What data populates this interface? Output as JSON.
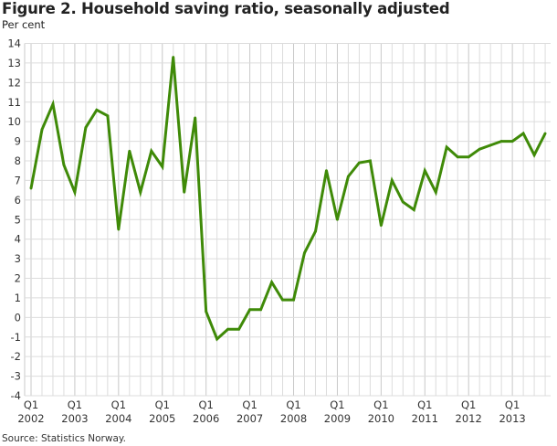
{
  "chart_data": {
    "type": "line",
    "title": "Figure 2. Household saving ratio, seasonally adjusted",
    "subtitle": "Per cent",
    "source": "Source: Statistics Norway.",
    "xlabel": "",
    "ylabel": "Per cent",
    "ylim": [
      -4,
      14
    ],
    "yticks": [
      "14",
      "13",
      "12",
      "11",
      "10",
      "9",
      "8",
      "7",
      "6",
      "5",
      "4",
      "3",
      "2",
      "1",
      "0",
      "-1",
      "-2",
      "-3",
      "-4"
    ],
    "ytick_values": [
      14,
      13,
      12,
      11,
      10,
      9,
      8,
      7,
      6,
      5,
      4,
      3,
      2,
      1,
      0,
      -1,
      -2,
      -3,
      -4
    ],
    "xticks": [
      {
        "q": "Q1",
        "year": "2002",
        "index": 0
      },
      {
        "q": "Q1",
        "year": "2003",
        "index": 4
      },
      {
        "q": "Q1",
        "year": "2004",
        "index": 8
      },
      {
        "q": "Q1",
        "year": "2005",
        "index": 12
      },
      {
        "q": "Q1",
        "year": "2006",
        "index": 16
      },
      {
        "q": "Q1",
        "year": "2007",
        "index": 20
      },
      {
        "q": "Q1",
        "year": "2008",
        "index": 24
      },
      {
        "q": "Q1",
        "year": "2009",
        "index": 28
      },
      {
        "q": "Q1",
        "year": "2010",
        "index": 32
      },
      {
        "q": "Q1",
        "year": "2011",
        "index": 36
      },
      {
        "q": "Q1",
        "year": "2012",
        "index": 40
      },
      {
        "q": "Q1",
        "year": "2013",
        "index": 44
      }
    ],
    "grid": true,
    "series": [
      {
        "name": "Household saving ratio",
        "color": "#3f8a08",
        "start": "2002Q1",
        "values": [
          6.6,
          9.6,
          10.9,
          7.8,
          6.4,
          9.7,
          10.6,
          10.3,
          4.5,
          8.5,
          6.4,
          8.5,
          7.7,
          13.3,
          6.4,
          10.2,
          0.3,
          -1.1,
          -0.6,
          -0.6,
          0.4,
          0.4,
          1.8,
          0.9,
          0.9,
          3.3,
          4.4,
          7.5,
          5.0,
          7.2,
          7.9,
          8.0,
          4.7,
          7.0,
          5.9,
          5.5,
          7.5,
          6.4,
          8.7,
          8.2,
          8.2,
          8.6,
          8.8,
          9.0,
          9.0,
          9.4,
          8.3,
          9.4
        ]
      }
    ],
    "colors": {
      "grid": "#dcdcdc",
      "grid_major": "#c8c8c8",
      "line": "#3f8a08"
    }
  }
}
